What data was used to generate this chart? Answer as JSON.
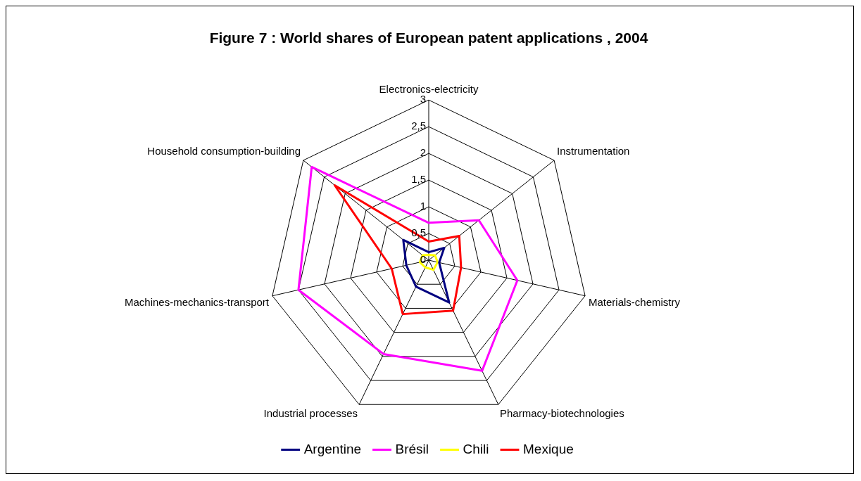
{
  "chart_data": {
    "type": "radar",
    "title": "Figure 7 : World shares of European patent applications , 2004",
    "categories": [
      "Electronics-electricity",
      "Instrumentation",
      "Materials-chemistry",
      "Pharmacy-biotechnologies",
      "Industrial processes",
      "Machines-mechanics-transport",
      "Household consumption-building"
    ],
    "series": [
      {
        "name": "Argentine",
        "color": "#000080",
        "values": [
          0.15,
          0.37,
          0.2,
          0.88,
          0.55,
          0.43,
          0.61
        ]
      },
      {
        "name": "Brésil",
        "color": "#ff00ff",
        "values": [
          0.7,
          1.2,
          1.7,
          2.3,
          1.95,
          2.5,
          2.8
        ]
      },
      {
        "name": "Chili",
        "color": "#ffff00",
        "values": [
          0.1,
          0.15,
          0.17,
          0.2,
          0.15,
          0.17,
          0.15
        ]
      },
      {
        "name": "Mexique",
        "color": "#ff0000",
        "values": [
          0.35,
          0.73,
          0.62,
          1.05,
          1.12,
          0.71,
          2.25
        ]
      }
    ],
    "ylim": [
      0,
      3
    ],
    "yticks": [
      0,
      {
        "value": 0.5,
        "label": "0,5"
      },
      1,
      {
        "value": 1.5,
        "label": "1,5"
      },
      2,
      {
        "value": 2.5,
        "label": "2,5"
      },
      3
    ],
    "legend": "bottom",
    "grid": true,
    "marker": "none"
  }
}
